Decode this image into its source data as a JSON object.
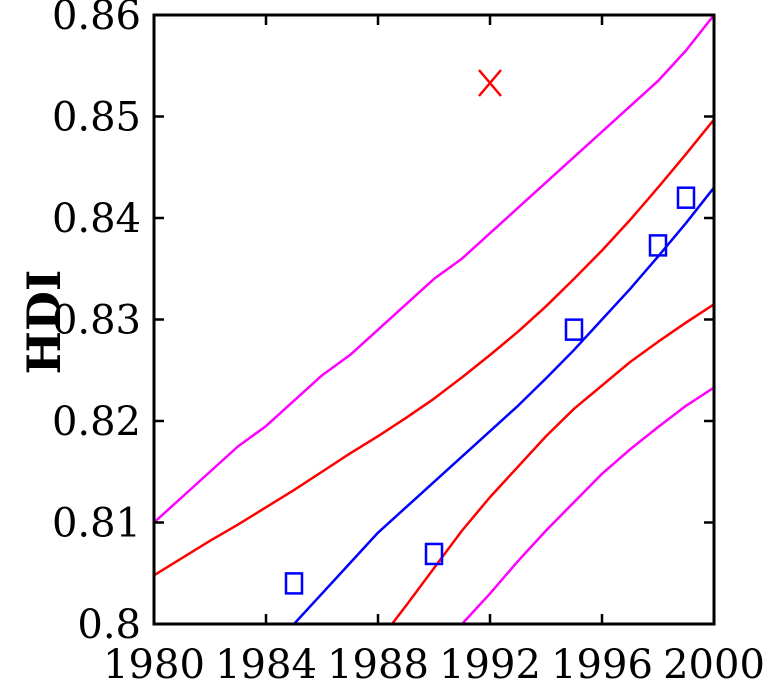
{
  "chart_data": {
    "type": "line",
    "title": "",
    "xlabel": "",
    "ylabel": "HDI",
    "xlim": [
      1980,
      2000
    ],
    "ylim": [
      0.8,
      0.86
    ],
    "xticks": [
      1980,
      1984,
      1988,
      1992,
      1996,
      2000
    ],
    "yticks": [
      0.8,
      0.81,
      0.82,
      0.83,
      0.84,
      0.85,
      0.86
    ],
    "xtick_labels": [
      "1980",
      "1984",
      "1988",
      "1992",
      "1996",
      "2000"
    ],
    "ytick_labels": [
      "0.8",
      "0.81",
      "0.82",
      "0.83",
      "0.84",
      "0.85",
      "0.86"
    ],
    "grid": false,
    "legend": "none",
    "series": [
      {
        "kind": "line",
        "color": "#ff00ff",
        "x": [
          1980,
          1981,
          1982,
          1983,
          1984,
          1985,
          1986,
          1987,
          1988,
          1989,
          1990,
          1991,
          1992,
          1993,
          1994,
          1995,
          1996,
          1997,
          1998,
          1999,
          2000
        ],
        "y": [
          0.81,
          0.8125,
          0.815,
          0.8175,
          0.8195,
          0.822,
          0.8245,
          0.8265,
          0.829,
          0.8315,
          0.834,
          0.836,
          0.8385,
          0.841,
          0.8435,
          0.846,
          0.8485,
          0.851,
          0.8535,
          0.8565,
          0.86
        ]
      },
      {
        "kind": "line",
        "color": "#ff0000",
        "x": [
          1980,
          1981,
          1982,
          1983,
          1984,
          1985,
          1986,
          1987,
          1988,
          1989,
          1990,
          1991,
          1992,
          1993,
          1994,
          1995,
          1996,
          1997,
          1998,
          1999,
          2000
        ],
        "y": [
          0.8048,
          0.8065,
          0.8082,
          0.8098,
          0.8115,
          0.8132,
          0.815,
          0.8168,
          0.8185,
          0.8203,
          0.8222,
          0.8243,
          0.8265,
          0.8288,
          0.8313,
          0.834,
          0.8368,
          0.8398,
          0.843,
          0.8463,
          0.8497
        ]
      },
      {
        "kind": "line",
        "color": "#0000ff",
        "x": [
          1985,
          1986,
          1987,
          1988,
          1989,
          1990,
          1991,
          1992,
          1993,
          1994,
          1995,
          1996,
          1997,
          1998,
          1999,
          2000
        ],
        "y": [
          0.8,
          0.803,
          0.806,
          0.809,
          0.8115,
          0.814,
          0.8165,
          0.819,
          0.8215,
          0.8242,
          0.827,
          0.83,
          0.833,
          0.8362,
          0.8395,
          0.843
        ]
      },
      {
        "kind": "line",
        "color": "#ff0000",
        "x": [
          1988.5,
          1989,
          1990,
          1991,
          1992,
          1993,
          1994,
          1995,
          1996,
          1997,
          1998,
          1999,
          2000
        ],
        "y": [
          0.8,
          0.8018,
          0.8055,
          0.8092,
          0.8125,
          0.8155,
          0.8185,
          0.8212,
          0.8235,
          0.8258,
          0.8278,
          0.8297,
          0.8315
        ]
      },
      {
        "kind": "line",
        "color": "#ff00ff",
        "x": [
          1991,
          1992,
          1993,
          1994,
          1995,
          1996,
          1997,
          1998,
          1999,
          2000
        ],
        "y": [
          0.8,
          0.803,
          0.8062,
          0.8092,
          0.812,
          0.8148,
          0.8172,
          0.8194,
          0.8215,
          0.8233
        ]
      },
      {
        "kind": "marker",
        "marker": "square",
        "color": "#0000ff",
        "x": [
          1985,
          1990,
          1995,
          1998,
          1999
        ],
        "y": [
          0.804,
          0.8069,
          0.829,
          0.8373,
          0.842
        ]
      },
      {
        "kind": "marker",
        "marker": "x",
        "color": "#ff0000",
        "x": [
          1992
        ],
        "y": [
          0.8533
        ]
      }
    ]
  }
}
